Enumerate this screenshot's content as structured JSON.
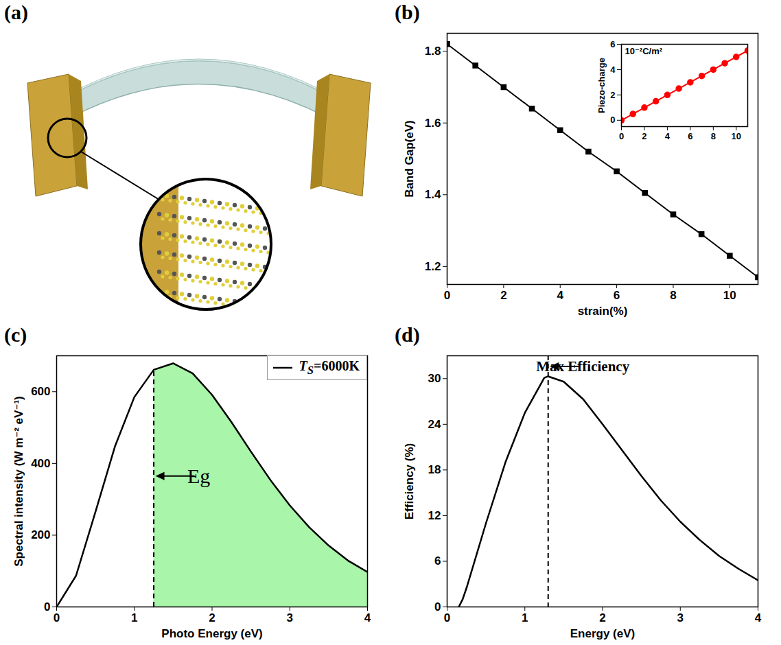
{
  "chart_data": [
    {
      "type": "diagram",
      "title": "(a)"
    },
    {
      "type": "line",
      "title": "(b)",
      "x_label": "strain(%)",
      "y_label": "Band Gap(eV)",
      "xlim": [
        0,
        11
      ],
      "xticks": [
        0,
        2,
        4,
        6,
        8,
        10
      ],
      "ylim": [
        1.15,
        1.85
      ],
      "yticks": [
        1.2,
        1.4,
        1.6,
        1.8
      ],
      "x": [
        0,
        1,
        2,
        3,
        4,
        5,
        6,
        7,
        8,
        9,
        10,
        11
      ],
      "values": [
        1.82,
        1.76,
        1.7,
        1.64,
        1.58,
        1.52,
        1.465,
        1.405,
        1.345,
        1.29,
        1.23,
        1.17
      ],
      "color": "#000000",
      "marker": "square"
    },
    {
      "type": "line",
      "y_label": "Piezo-charge",
      "annotation": "10⁻²C/m²",
      "xlim": [
        0,
        11
      ],
      "xticks": [
        0,
        2,
        4,
        6,
        8,
        10
      ],
      "ylim": [
        -0.5,
        6
      ],
      "yticks": [
        0,
        2,
        4,
        6
      ],
      "x": [
        0,
        1,
        2,
        3,
        4,
        5,
        6,
        7,
        8,
        9,
        10,
        11
      ],
      "values": [
        0,
        0.5,
        1.0,
        1.5,
        2.0,
        2.5,
        3.0,
        3.5,
        4.0,
        4.5,
        5.0,
        5.5
      ],
      "color": "#ff0000",
      "marker": "circle"
    },
    {
      "type": "area",
      "title": "(c)",
      "x_label": "Photo Energy (eV)",
      "y_label": "Spectral intensity (W m⁻² eV⁻¹)",
      "xlim": [
        0,
        4
      ],
      "xticks": [
        0,
        1,
        2,
        3,
        4
      ],
      "ylim": [
        0,
        700
      ],
      "yticks": [
        0,
        200,
        400,
        600
      ],
      "x": [
        0,
        0.25,
        0.5,
        0.75,
        1.0,
        1.25,
        1.5,
        1.75,
        2.0,
        2.25,
        2.5,
        2.75,
        3.0,
        3.25,
        3.5,
        3.75,
        4.0
      ],
      "series": [
        {
          "name": "TS=6000K",
          "color": "#000000",
          "values": [
            0,
            87,
            265,
            447,
            585,
            661,
            679,
            651,
            591,
            515,
            433,
            354,
            283,
            222,
            171,
            129,
            97
          ]
        }
      ],
      "legend": "top-right",
      "color": "#a9f5a9",
      "annotations": [
        {
          "text": "Eg",
          "x": 1.25,
          "line_style": "dashed"
        }
      ]
    },
    {
      "type": "line",
      "title": "(d)",
      "x_label": "Energy (eV)",
      "y_label": "Efficiency (%)",
      "xlim": [
        0,
        4
      ],
      "xticks": [
        0,
        1,
        2,
        3,
        4
      ],
      "ylim": [
        0,
        33
      ],
      "yticks": [
        0,
        6,
        12,
        18,
        24,
        30
      ],
      "x": [
        0.15,
        0.2,
        0.25,
        0.5,
        0.75,
        1.0,
        1.25,
        1.3,
        1.5,
        1.75,
        2.0,
        2.25,
        2.5,
        2.75,
        3.0,
        3.25,
        3.5,
        3.75,
        4.0
      ],
      "values": [
        0,
        1.0,
        2.5,
        11,
        19,
        25.5,
        30.1,
        30.3,
        29.6,
        27.3,
        24,
        20.6,
        17.2,
        14,
        11.2,
        8.8,
        6.7,
        5,
        3.5
      ],
      "color": "#000000",
      "annotations": [
        {
          "text": "Max Efficiency",
          "x": 1.3,
          "line_style": "dashed"
        }
      ]
    }
  ]
}
